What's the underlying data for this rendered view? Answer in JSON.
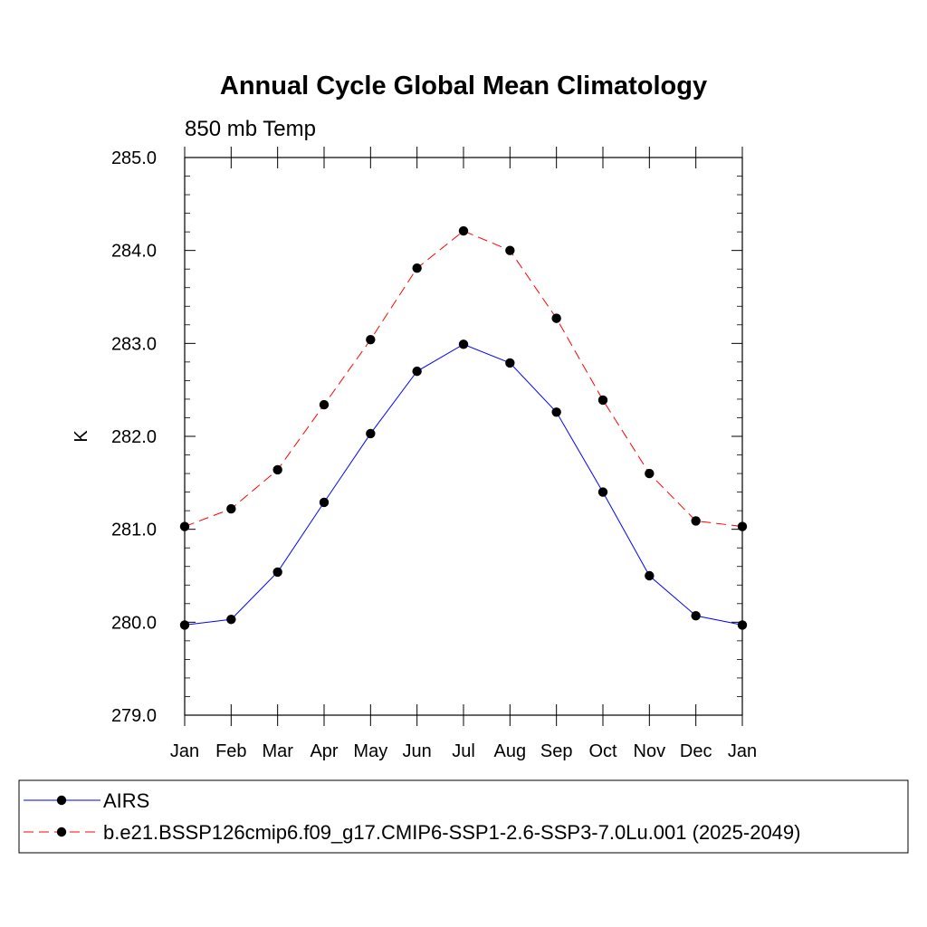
{
  "chart_data": {
    "type": "line",
    "title": "Annual Cycle Global Mean Climatology",
    "subtitle": "850 mb Temp",
    "xlabel": "",
    "ylabel": "K",
    "categories": [
      "Jan",
      "Feb",
      "Mar",
      "Apr",
      "May",
      "Jun",
      "Jul",
      "Aug",
      "Sep",
      "Oct",
      "Nov",
      "Dec",
      "Jan"
    ],
    "ylim": [
      279.0,
      285.0
    ],
    "yticks": [
      "279.0",
      "280.0",
      "281.0",
      "282.0",
      "283.0",
      "284.0",
      "285.0"
    ],
    "grid": false,
    "legend_position": "bottom",
    "series": [
      {
        "name": "AIRS",
        "color": "#0000ff",
        "style": "solid",
        "marker": "filled-circle",
        "values": [
          279.97,
          280.03,
          280.54,
          281.29,
          282.03,
          282.7,
          282.99,
          282.79,
          282.26,
          281.4,
          280.5,
          280.07,
          279.97
        ]
      },
      {
        "name": "b.e21.BSSP126cmip6.f09_g17.CMIP6-SSP1-2.6-SSP3-7.0Lu.001 (2025-2049)",
        "color": "#ff0000",
        "style": "dashed",
        "marker": "filled-circle",
        "values": [
          281.03,
          281.22,
          281.64,
          282.34,
          283.04,
          283.81,
          284.21,
          284.0,
          283.27,
          282.39,
          281.6,
          281.09,
          281.03
        ]
      }
    ]
  }
}
